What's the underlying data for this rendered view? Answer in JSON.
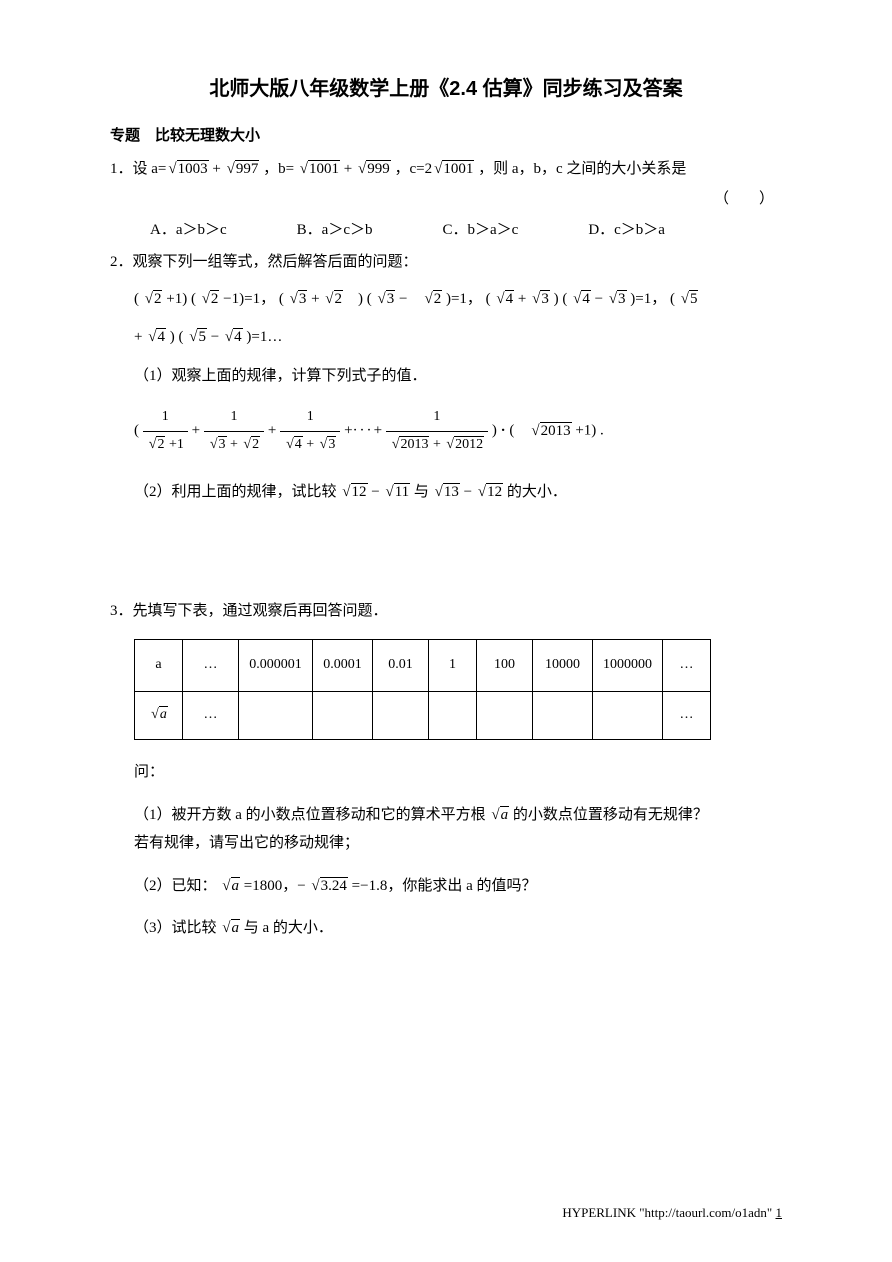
{
  "title": "北师大版八年级数学上册《2.4 估算》同步练习及答案",
  "subtitle": "专题　比较无理数大小",
  "q1": {
    "stem_prefix": "1．设 a=",
    "expr_a": {
      "r1": "1003",
      "r2": "997"
    },
    "stem_mid1": "，b=",
    "expr_b": {
      "r1": "1001",
      "r2": "999"
    },
    "stem_mid2": "，c=2",
    "expr_c": {
      "r": "1001"
    },
    "stem_suffix": " ，则 a，b，c 之间的大小关系是",
    "bracket": "（　　）",
    "choices": {
      "A": "A．a＞b＞c",
      "B": "B．a＞c＞b",
      "C": "C．b＞a＞c",
      "D": "D．c＞b＞a"
    }
  },
  "q2": {
    "stem": "2．观察下列一组等式，然后解答后面的问题：",
    "eq_tail": "=1…",
    "sub1": "（1）观察上面的规律，计算下列式子的值．",
    "frac_last_den_a": "2013",
    "frac_last_den_b": "2012",
    "last_factor": "2013",
    "sub2_prefix": "（2）利用上面的规律，试比较",
    "sub2_a": {
      "r1": "12",
      "r2": "11"
    },
    "sub2_mid": " 与 ",
    "sub2_b": {
      "r1": "13",
      "r2": "12"
    },
    "sub2_suffix": " 的大小．"
  },
  "q3": {
    "stem": "3．先填写下表，通过观察后再回答问题．",
    "columns_width": [
      48,
      56,
      74,
      60,
      56,
      48,
      56,
      60,
      70,
      48
    ],
    "row1": [
      "a",
      "…",
      "0.000001",
      "0.0001",
      "0.01",
      "1",
      "100",
      "10000",
      "1000000",
      "…"
    ],
    "row2_label_radicand": "a",
    "row2": [
      "",
      "…",
      "",
      "",
      "",
      "",
      "",
      "",
      "",
      "…"
    ],
    "after_table": "问：",
    "sub1_a": "（1）被开方数 a 的小数点位置移动和它的算术平方根",
    "sub1_rad": "a",
    "sub1_b": " 的小数点位置移动有无规律？",
    "sub1_c": "若有规律，请写出它的移动规律；",
    "sub2_a": "（2）已知：",
    "sub2_rad1": "a",
    "sub2_b": " =1800，−",
    "sub2_rad2": "3.24",
    "sub2_c": "  =−1.8，你能求出 a 的值吗？",
    "sub3_a": "（3）试比较",
    "sub3_rad": "a",
    "sub3_b": " 与 a 的大小．"
  },
  "footer": {
    "text": "HYPERLINK \"http://taourl.com/o1adn\" ",
    "page": "1"
  }
}
